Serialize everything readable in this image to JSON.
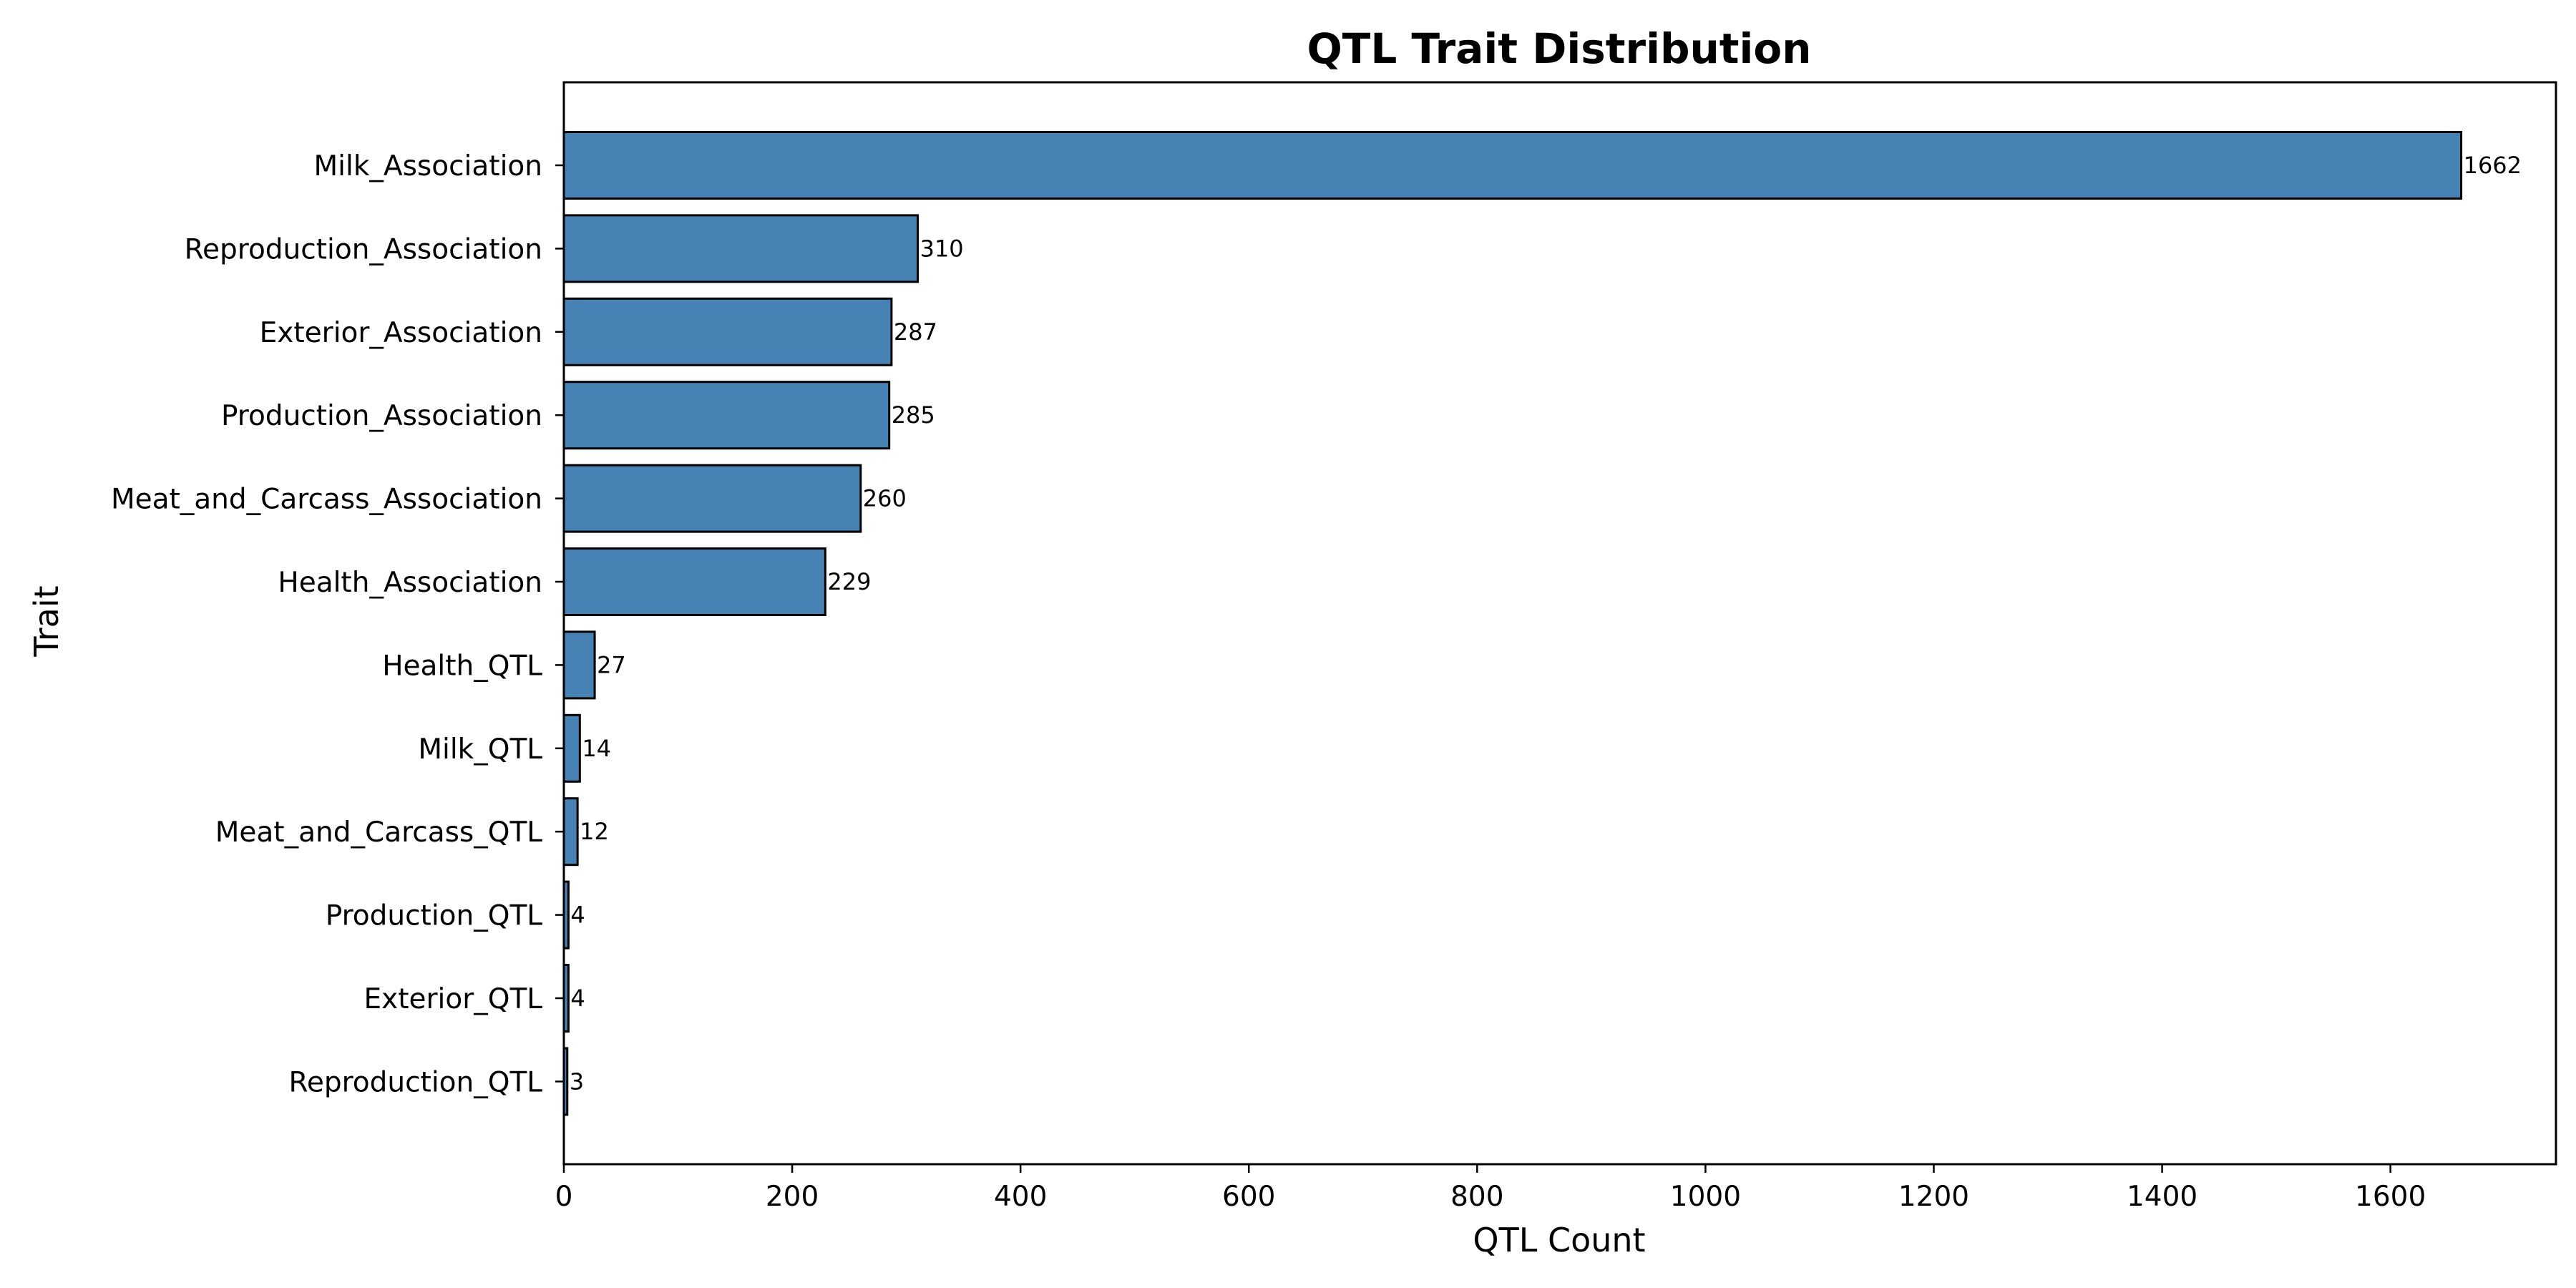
{
  "chart_data": {
    "type": "bar",
    "orientation": "horizontal",
    "title": "QTL Trait Distribution",
    "xlabel": "QTL Count",
    "ylabel": "Trait",
    "categories": [
      "Milk_Association",
      "Reproduction_Association",
      "Exterior_Association",
      "Production_Association",
      "Meat_and_Carcass_Association",
      "Health_Association",
      "Health_QTL",
      "Milk_QTL",
      "Meat_and_Carcass_QTL",
      "Production_QTL",
      "Exterior_QTL",
      "Reproduction_QTL"
    ],
    "values": [
      1662,
      310,
      287,
      285,
      260,
      229,
      27,
      14,
      12,
      4,
      4,
      3
    ],
    "data_labels": [
      "1662",
      "310",
      "287",
      "285",
      "260",
      "229",
      "27",
      "14",
      "12",
      "4",
      "4",
      "3"
    ],
    "xlim": [
      0,
      1745
    ],
    "xticks": [
      0,
      200,
      400,
      600,
      800,
      1000,
      1200,
      1400,
      1600
    ],
    "xtick_labels": [
      "0",
      "200",
      "400",
      "600",
      "800",
      "1000",
      "1200",
      "1400",
      "1600"
    ],
    "grid": false,
    "legend": "none",
    "bar_color": "#4682b4",
    "bar_edge_color": "#000000"
  }
}
